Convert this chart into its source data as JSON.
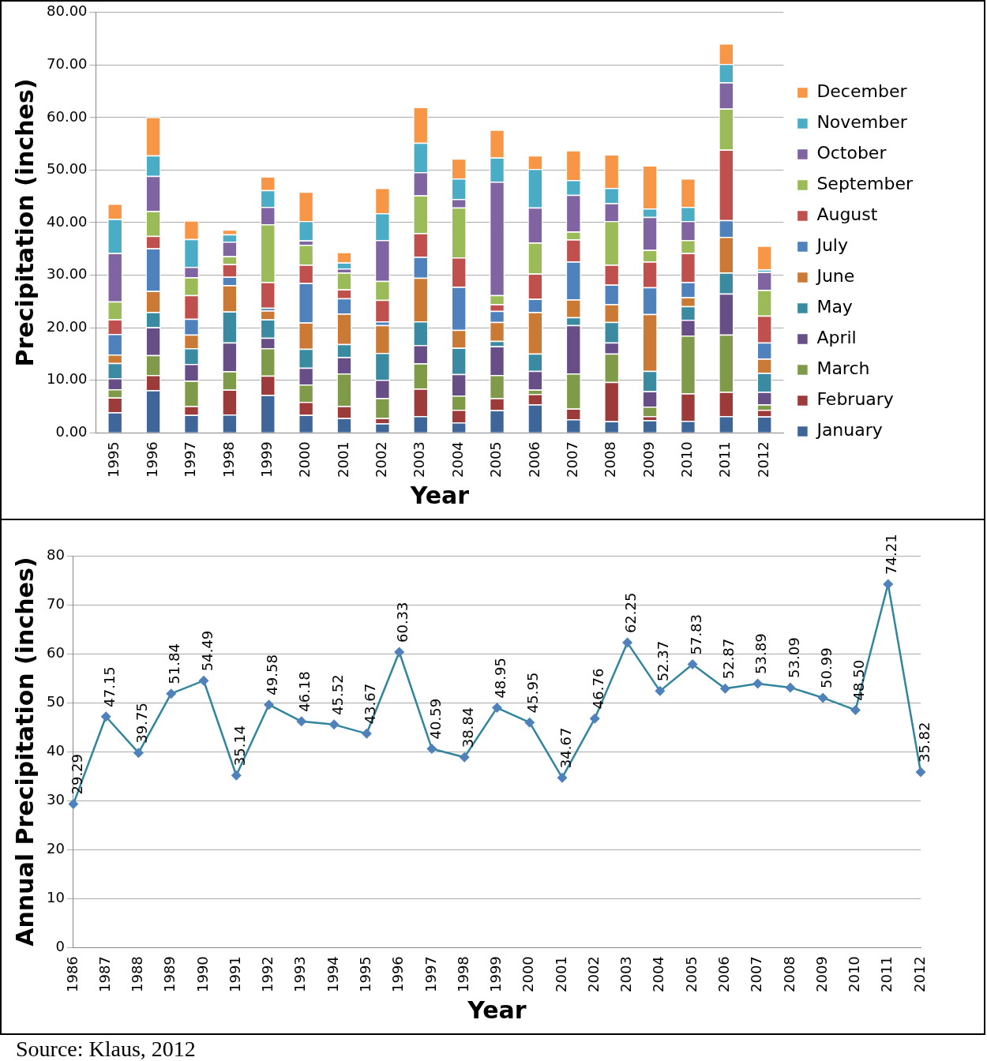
{
  "chart_data": [
    {
      "type": "bar",
      "stacked": true,
      "xlabel": "Year",
      "ylabel": "Precipitation (inches)",
      "grid": "y",
      "legend": "right",
      "categories": [
        "1995",
        "1996",
        "1997",
        "1998",
        "1999",
        "2000",
        "2001",
        "2002",
        "2003",
        "2004",
        "2005",
        "2006",
        "2007",
        "2008",
        "2009",
        "2010",
        "2011",
        "2012"
      ],
      "ylim": [
        0,
        80
      ],
      "yticks": [
        {
          "value": 0,
          "label": "0.00"
        },
        {
          "value": 10,
          "label": "10.00"
        },
        {
          "value": 20,
          "label": "20.00"
        },
        {
          "value": 30,
          "label": "30.00"
        },
        {
          "value": 40,
          "label": "40.00"
        },
        {
          "value": 50,
          "label": "50.00"
        },
        {
          "value": 60,
          "label": "60.00"
        },
        {
          "value": 70,
          "label": "70.00"
        },
        {
          "value": 80,
          "label": "80.00"
        }
      ],
      "series": [
        {
          "name": "January",
          "color": "#3f6698",
          "values": [
            3.9,
            8.1,
            3.4,
            3.5,
            7.2,
            3.4,
            2.8,
            1.8,
            3.2,
            2.0,
            4.3,
            5.4,
            2.6,
            2.2,
            2.4,
            2.3,
            3.2,
            3.1
          ]
        },
        {
          "name": "February",
          "color": "#9c3b3a",
          "values": [
            2.8,
            2.9,
            1.7,
            4.7,
            3.7,
            2.5,
            2.3,
            1.0,
            5.2,
            2.4,
            2.3,
            2.0,
            2.0,
            7.5,
            0.8,
            5.2,
            4.6,
            1.3
          ]
        },
        {
          "name": "March",
          "color": "#7f9a48",
          "values": [
            1.6,
            3.8,
            4.8,
            3.5,
            5.2,
            3.3,
            6.2,
            3.8,
            4.8,
            2.7,
            4.4,
            0.8,
            6.7,
            5.4,
            1.8,
            11.0,
            10.9,
            1.0
          ]
        },
        {
          "name": "April",
          "color": "#674e86",
          "values": [
            2.1,
            5.3,
            3.2,
            5.5,
            2.0,
            3.2,
            3.1,
            3.5,
            3.5,
            4.1,
            5.5,
            3.6,
            9.2,
            2.1,
            2.9,
            3.0,
            7.8,
            2.4
          ]
        },
        {
          "name": "May",
          "color": "#3a8ba1",
          "values": [
            2.9,
            2.9,
            3.0,
            5.9,
            3.5,
            3.6,
            2.5,
            5.1,
            4.5,
            5.0,
            1.0,
            3.3,
            1.5,
            3.9,
            3.9,
            2.6,
            4.0,
            3.6
          ]
        },
        {
          "name": "June",
          "color": "#cb7a36",
          "values": [
            1.6,
            4.0,
            2.6,
            5.0,
            1.7,
            5.0,
            5.8,
            5.3,
            8.3,
            3.4,
            3.6,
            7.9,
            3.4,
            3.4,
            10.8,
            1.7,
            6.8,
            2.7
          ]
        },
        {
          "name": "July",
          "color": "#4f81bd",
          "values": [
            3.9,
            8.1,
            3.0,
            1.6,
            0.5,
            7.5,
            2.9,
            0.7,
            4.0,
            8.2,
            2.1,
            2.5,
            7.2,
            3.7,
            5.1,
            2.9,
            3.2,
            3.1
          ]
        },
        {
          "name": "August",
          "color": "#c0504d",
          "values": [
            2.8,
            2.4,
            4.5,
            2.4,
            4.9,
            3.5,
            1.7,
            4.1,
            4.5,
            5.6,
            1.3,
            4.8,
            4.2,
            3.8,
            4.9,
            5.5,
            13.4,
            5.1
          ]
        },
        {
          "name": "September",
          "color": "#9bbb59",
          "values": [
            3.4,
            4.7,
            3.4,
            1.5,
            11.0,
            3.8,
            3.2,
            3.6,
            7.2,
            9.5,
            1.7,
            5.9,
            1.5,
            8.3,
            2.2,
            2.5,
            7.8,
            4.9
          ]
        },
        {
          "name": "October",
          "color": "#8064a2",
          "values": [
            9.2,
            6.7,
            2.0,
            2.8,
            3.3,
            0.8,
            0.8,
            7.8,
            4.4,
            1.6,
            21.6,
            6.7,
            7.0,
            3.4,
            6.3,
            3.6,
            5.0,
            3.4
          ]
        },
        {
          "name": "November",
          "color": "#4bacc6",
          "values": [
            6.5,
            3.9,
            5.3,
            1.4,
            3.2,
            3.7,
            1.1,
            5.1,
            5.6,
            3.9,
            4.6,
            7.3,
            2.8,
            2.9,
            1.6,
            2.7,
            3.5,
            0.5
          ]
        },
        {
          "name": "December",
          "color": "#f79646",
          "values": [
            2.9,
            7.3,
            3.5,
            0.9,
            2.6,
            5.6,
            2.0,
            4.8,
            6.8,
            3.8,
            5.3,
            2.6,
            5.7,
            6.4,
            8.2,
            5.4,
            3.9,
            4.5
          ]
        }
      ]
    },
    {
      "type": "line",
      "xlabel": "Year",
      "ylabel": "Annual Precipitation (inches)",
      "grid": "y",
      "marker": "diamond",
      "line_style": "solid",
      "categories": [
        "1986",
        "1987",
        "1988",
        "1989",
        "1990",
        "1991",
        "1992",
        "1993",
        "1994",
        "1995",
        "1996",
        "1997",
        "1998",
        "1999",
        "2000",
        "2001",
        "2002",
        "2003",
        "2004",
        "2005",
        "2006",
        "2007",
        "2008",
        "2009",
        "2010",
        "2011",
        "2012"
      ],
      "ylim": [
        0,
        80
      ],
      "yticks": [
        0,
        10,
        20,
        30,
        40,
        50,
        60,
        70,
        80
      ],
      "series": [
        {
          "color": "#31859c",
          "values": [
            29.29,
            47.15,
            39.75,
            51.84,
            54.49,
            35.14,
            49.58,
            46.18,
            45.52,
            43.67,
            60.33,
            40.59,
            38.84,
            48.95,
            45.95,
            34.67,
            46.76,
            62.25,
            52.37,
            57.83,
            52.87,
            53.89,
            53.09,
            50.99,
            48.5,
            74.21,
            35.82
          ],
          "value_labels": [
            "29.29",
            "47.15",
            "39.75",
            "51.84",
            "54.49",
            "35.14",
            "49.58",
            "46.18",
            "45.52",
            "43.67",
            "60.33",
            "40.59",
            "38.84",
            "48.95",
            "45.95",
            "34.67",
            "46.76",
            "62.25",
            "52.37",
            "57.83",
            "52.87",
            "53.89",
            "53.09",
            "50.99",
            "48.50",
            "74.21",
            "35.82"
          ]
        }
      ],
      "annotations": [
        "Source:  Klaus, 2012"
      ]
    }
  ]
}
